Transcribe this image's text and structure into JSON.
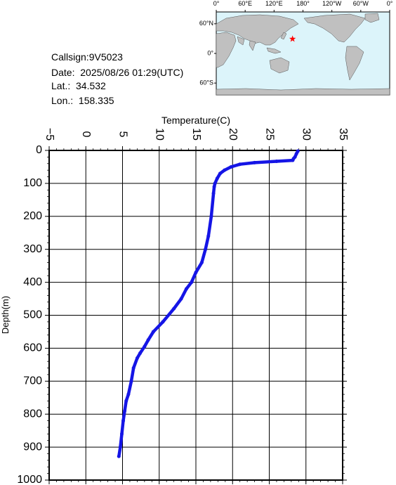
{
  "info": {
    "callsign": "Callsign:9V5023",
    "date": "Date:  2025/08/26 01:29(UTC)",
    "lat": "Lat.:  34.532",
    "lon": "Lon.:  158.335"
  },
  "map": {
    "lon_labels": [
      "0°",
      "60°E",
      "120°E",
      "180°",
      "120°W",
      "60°W",
      "0°"
    ],
    "lat_labels": [
      "60°N",
      "0°",
      "60°S"
    ],
    "marker_lat": 34.532,
    "marker_lon": 158.335,
    "colors": {
      "ocean": "#dcf4fa",
      "land": "#c0c0c0",
      "marker": "#ff0000"
    }
  },
  "chart_data": {
    "type": "line",
    "title": "",
    "xlabel": "Temperature(C)",
    "ylabel": "Depth(m)",
    "xlim": [
      -5,
      35
    ],
    "ylim": [
      0,
      1000
    ],
    "y_inverted": true,
    "x_axis_position": "top",
    "x_ticks": [
      -5,
      0,
      5,
      10,
      15,
      20,
      25,
      30,
      35
    ],
    "y_ticks": [
      0,
      100,
      200,
      300,
      400,
      500,
      600,
      700,
      800,
      900,
      1000
    ],
    "grid": true,
    "series": [
      {
        "color": "#1515e6",
        "x": [
          28.9,
          28.7,
          28.5,
          28.3,
          28.2,
          26.0,
          23.0,
          21.0,
          19.8,
          18.9,
          18.3,
          17.9,
          17.6,
          17.5,
          17.4,
          17.1,
          16.7,
          16.3,
          15.8,
          15.0,
          14.4,
          13.7,
          13.0,
          12.0,
          10.5,
          9.2,
          8.5,
          8.0,
          7.4,
          7.0,
          6.5,
          6.2,
          5.8,
          5.5,
          5.3,
          5.1,
          4.9,
          4.7,
          4.5
        ],
        "y": [
          2,
          10,
          20,
          25,
          30,
          33,
          37,
          42,
          50,
          60,
          70,
          85,
          100,
          110,
          130,
          200,
          260,
          300,
          340,
          370,
          400,
          420,
          450,
          480,
          520,
          550,
          575,
          595,
          615,
          630,
          660,
          700,
          740,
          760,
          790,
          820,
          860,
          900,
          928
        ]
      }
    ]
  }
}
